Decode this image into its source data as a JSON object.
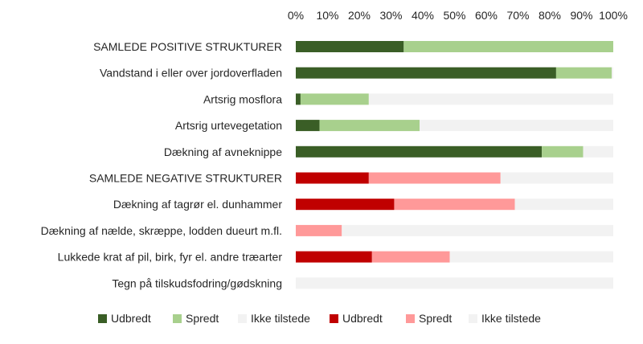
{
  "chart_data": {
    "type": "bar",
    "orientation": "horizontal",
    "stacked": true,
    "percent": true,
    "xlim": [
      0,
      100
    ],
    "x_ticks": [
      "0%",
      "10%",
      "20%",
      "30%",
      "40%",
      "50%",
      "60%",
      "70%",
      "80%",
      "90%",
      "100%"
    ],
    "x_axis_position": "top",
    "grid": false,
    "legend_position": "bottom",
    "categories": [
      "SAMLEDE POSITIVE STRUKTURER",
      "Vandstand i eller over jordoverfladen",
      "Artsrig mosflora",
      "Artsrig urtevegetation",
      "Dækning af avneknippe",
      "SAMLEDE NEGATIVE STRUKTURER",
      "Dækning af tagrør el. dunhammer",
      "Dækning af nælde, skræppe, lodden dueurt m.fl.",
      "Lukkede krat af pil, birk, fyr el. andre træarter",
      "Tegn på tilskudsfodring/gødskning"
    ],
    "series": [
      {
        "name": "Udbredt",
        "color": "#3a5e26",
        "values": [
          34,
          82,
          1.5,
          7.5,
          77.5,
          null,
          null,
          null,
          null,
          null
        ]
      },
      {
        "name": "Spredt",
        "color": "#a8d08d",
        "values": [
          66,
          17.5,
          21.5,
          31.5,
          13,
          null,
          null,
          null,
          null,
          null
        ]
      },
      {
        "name": "Ikke tilstede",
        "color": "#f2f2f2",
        "values": [
          0,
          0.5,
          77,
          61,
          9.5,
          null,
          null,
          null,
          null,
          null
        ]
      },
      {
        "name": "Udbredt",
        "color": "#c00000",
        "values": [
          null,
          null,
          null,
          null,
          null,
          23,
          31,
          0,
          24,
          0
        ]
      },
      {
        "name": "Spredt",
        "color": "#ff9999",
        "values": [
          null,
          null,
          null,
          null,
          null,
          41.5,
          38,
          14.5,
          24.5,
          0
        ]
      },
      {
        "name": "Ikke tilstede",
        "color": "#f2f2f2",
        "values": [
          null,
          null,
          null,
          null,
          null,
          35.5,
          31,
          85.5,
          51.5,
          100
        ]
      }
    ]
  }
}
